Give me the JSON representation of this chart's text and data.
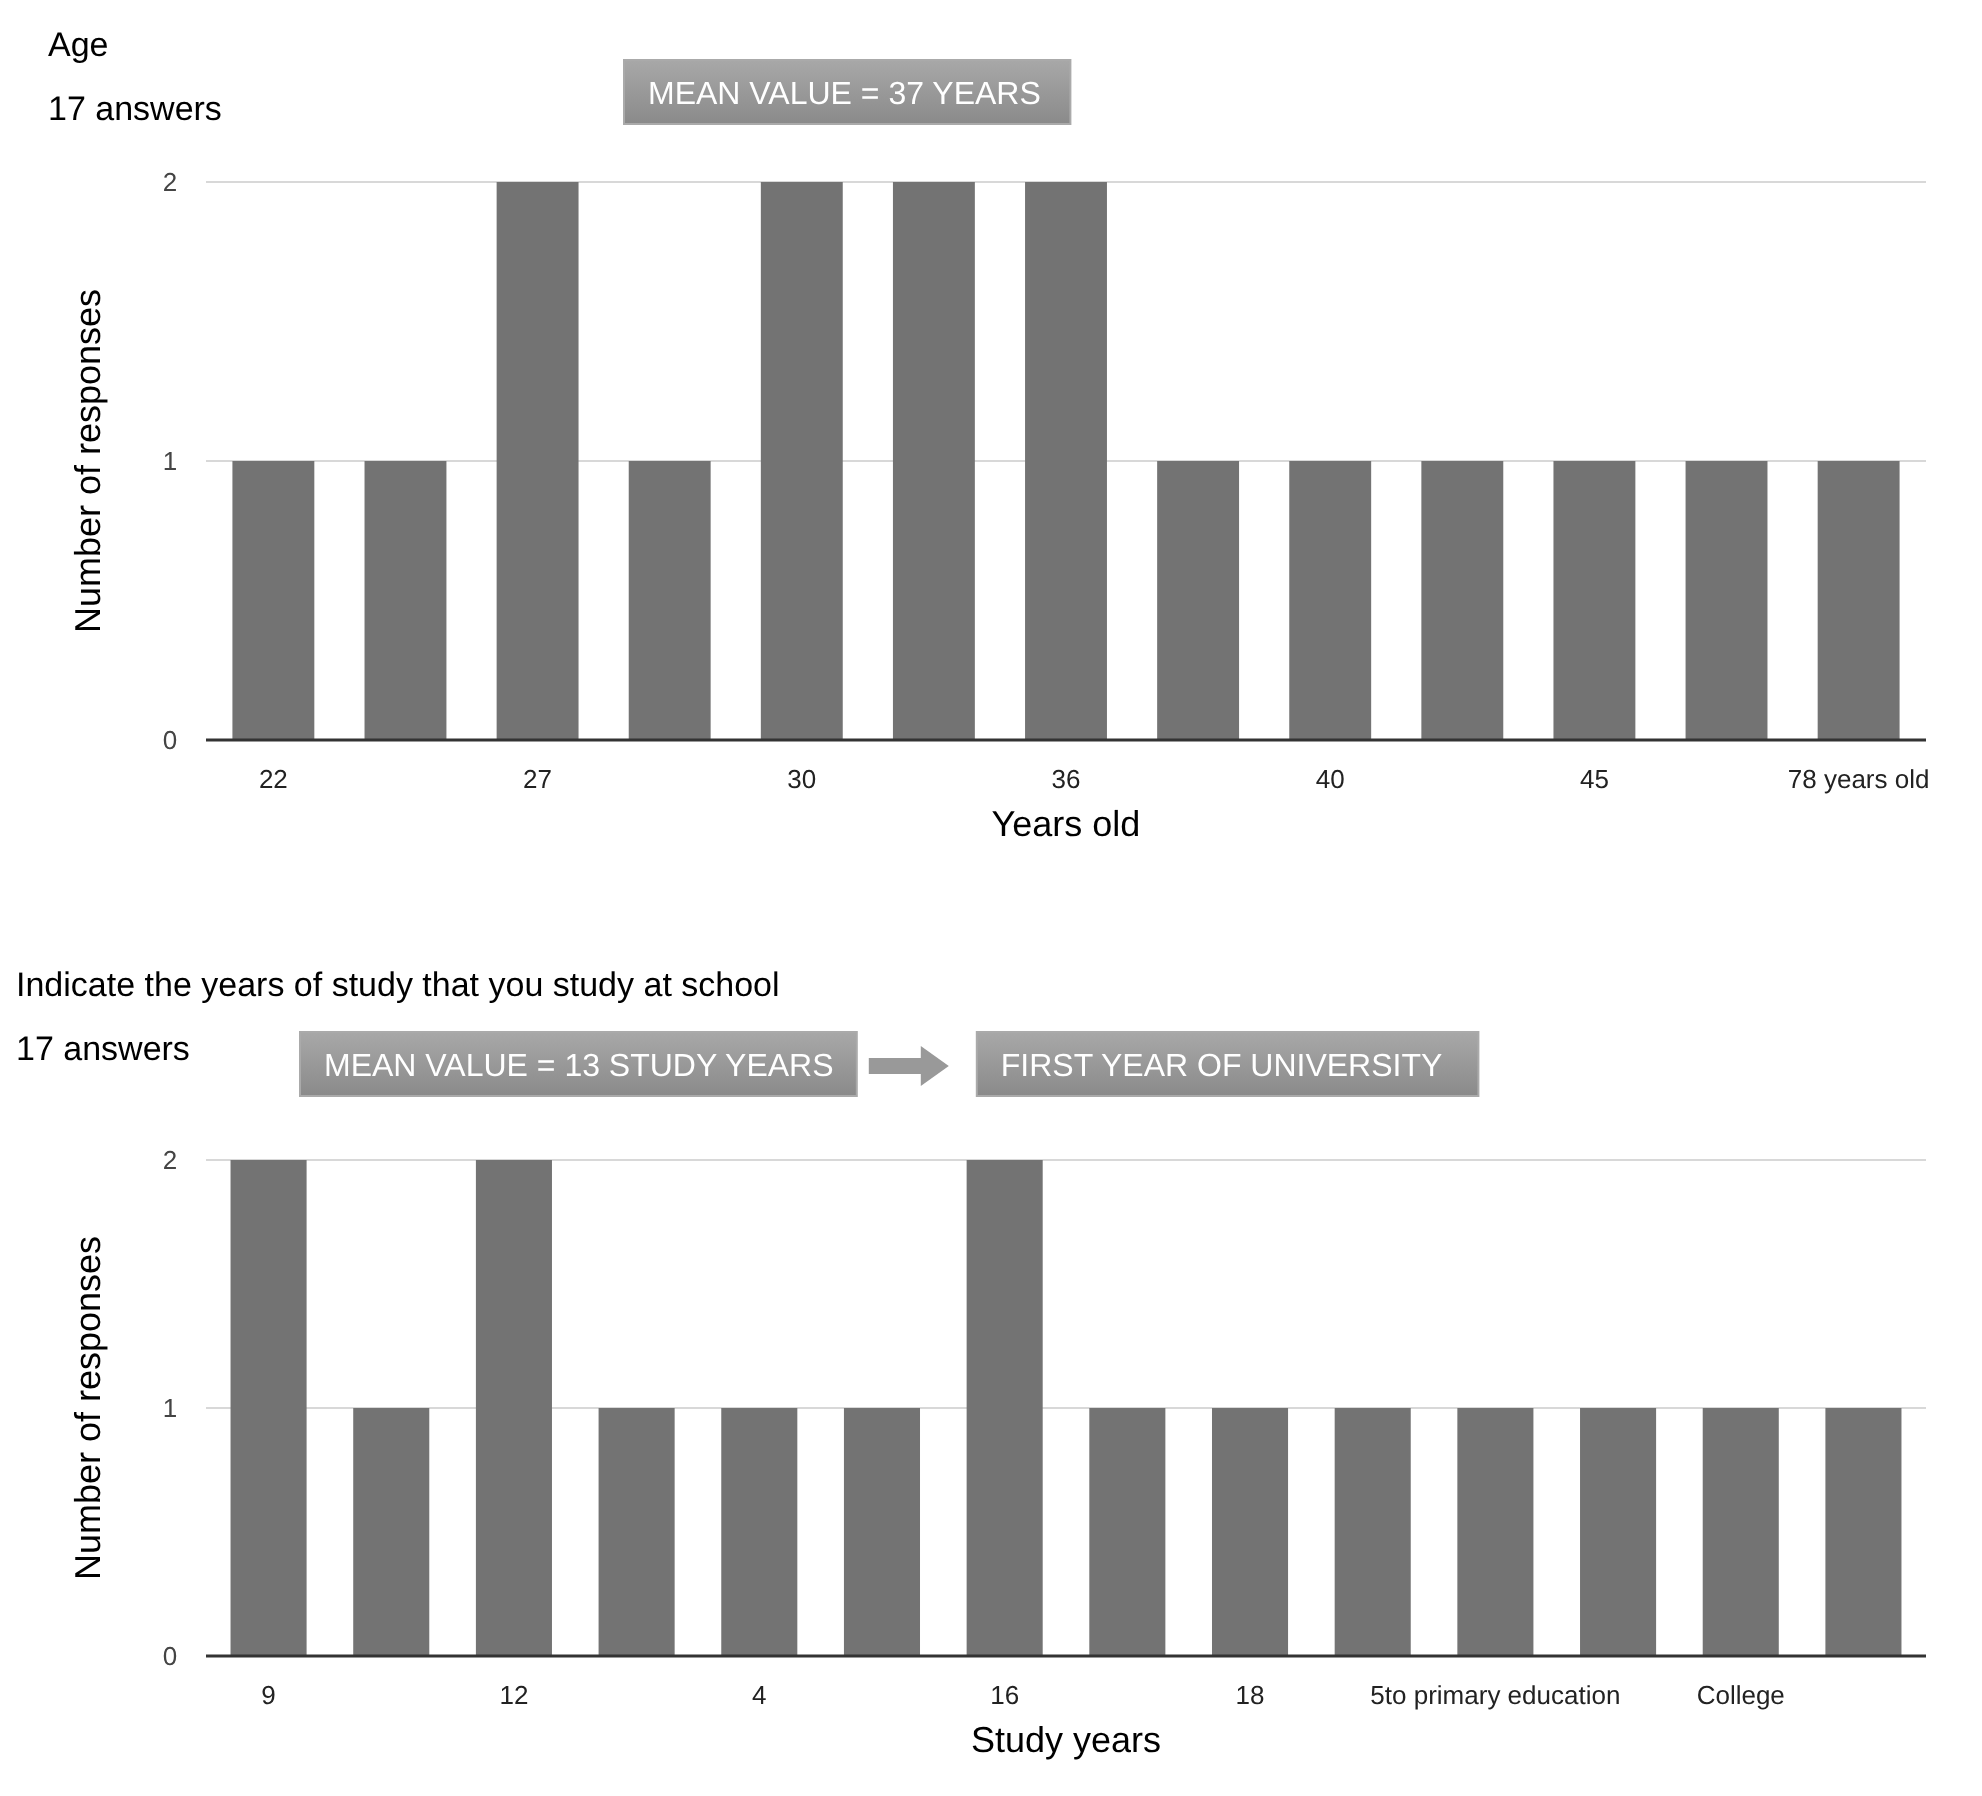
{
  "chart_data": [
    {
      "type": "bar",
      "title": "Age",
      "subtitle": "17 answers",
      "xlabel": "Years old",
      "ylabel": "Number of responses",
      "annotations": [
        "MEAN VALUE = 37 YEARS"
      ],
      "categories": [
        "22",
        null,
        "27",
        null,
        "30",
        null,
        "36",
        null,
        "40",
        null,
        "45",
        null,
        "78 years old"
      ],
      "values": [
        1,
        1,
        2,
        1,
        2,
        2,
        2,
        1,
        1,
        1,
        1,
        1,
        1
      ],
      "color": "#737373",
      "ylim": [
        0,
        2
      ],
      "yticks": [
        0,
        1,
        2
      ],
      "grid": "y"
    },
    {
      "type": "bar",
      "title": "Indicate the years of study that you study at school",
      "subtitle": "17 answers",
      "xlabel": "Study years",
      "ylabel": "Number of responses",
      "annotations": [
        "MEAN VALUE = 13 STUDY YEARS",
        "FIRST YEAR OF UNIVERSITY"
      ],
      "categories": [
        "9",
        null,
        "12",
        null,
        "4",
        null,
        "16",
        null,
        "18",
        null,
        "5to primary education",
        null,
        "College",
        null
      ],
      "values": [
        2,
        1,
        2,
        1,
        1,
        1,
        2,
        1,
        1,
        1,
        1,
        1,
        1,
        1
      ],
      "color": "#737373",
      "ylim": [
        0,
        2
      ],
      "yticks": [
        0,
        1,
        2
      ],
      "grid": "y"
    }
  ]
}
